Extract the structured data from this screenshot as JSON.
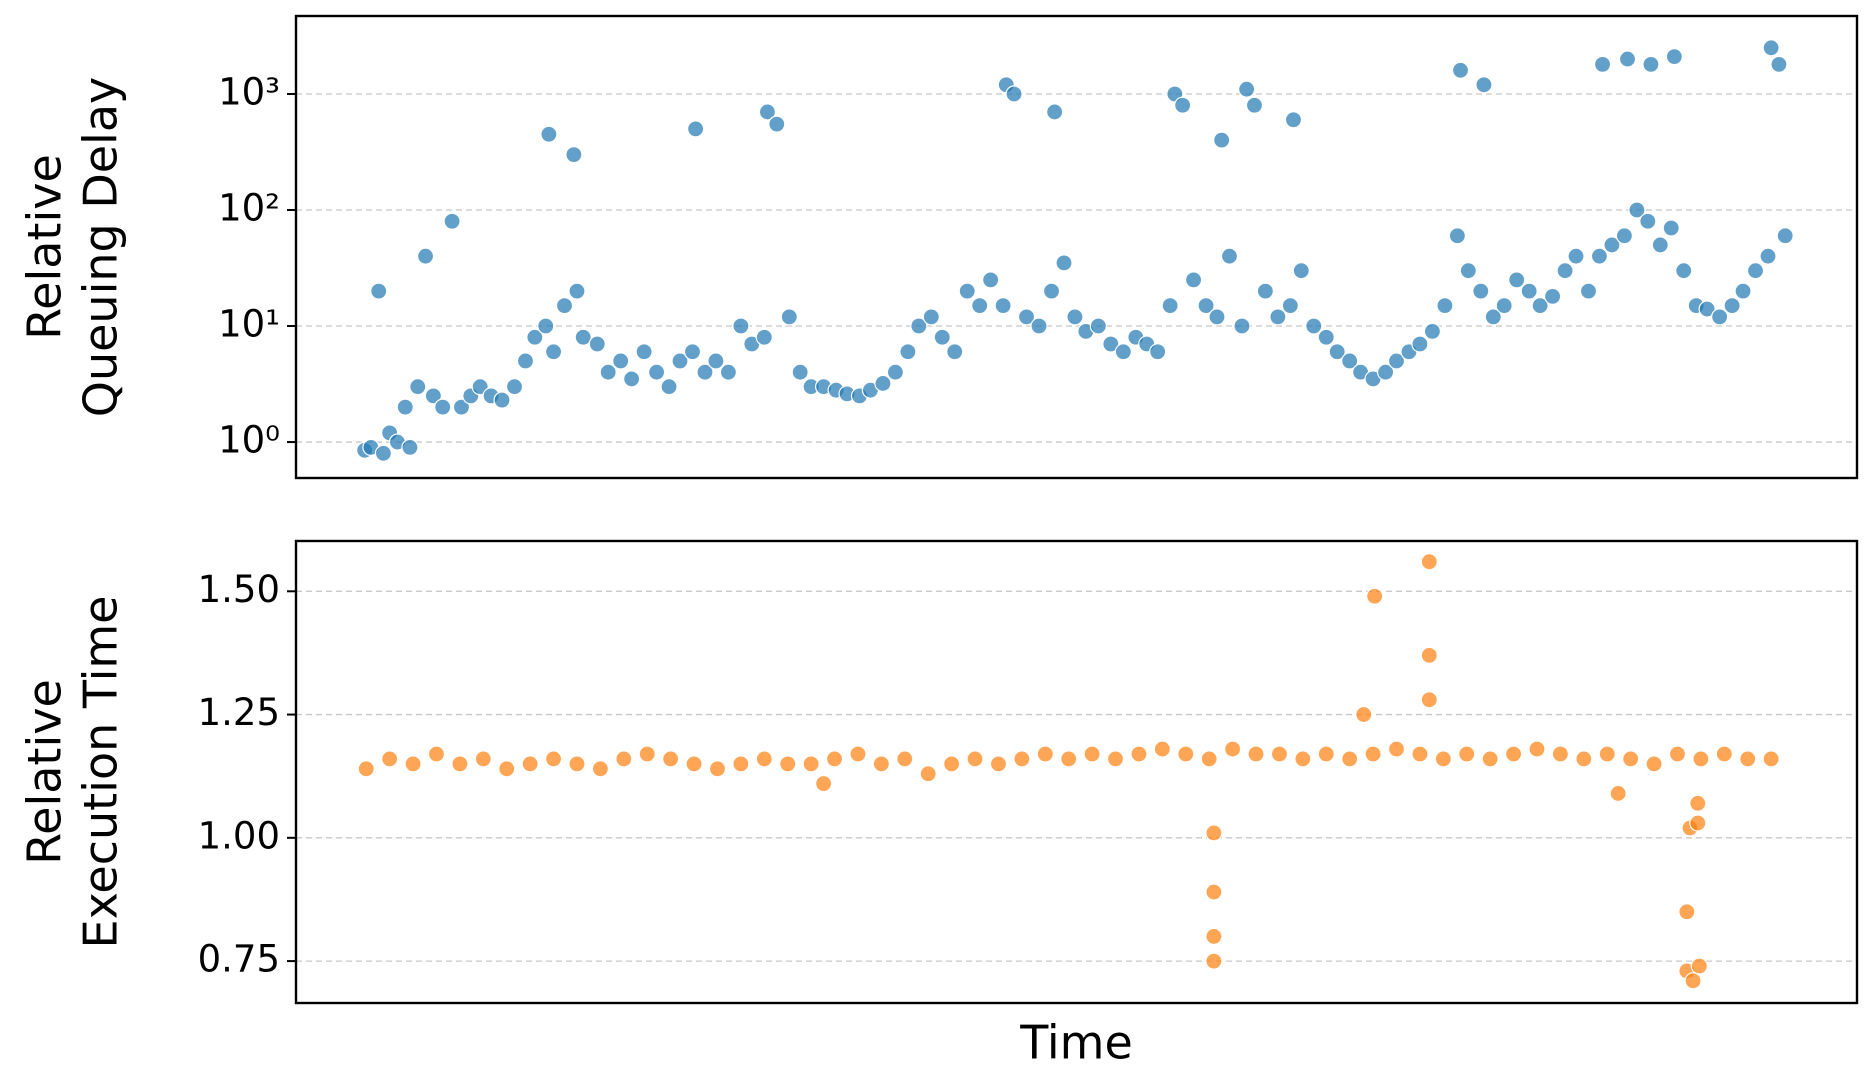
{
  "chart_data": [
    {
      "type": "scatter",
      "ylabel": [
        "Relative",
        "Queuing Delay"
      ],
      "color": "#1f77b4",
      "log_y": true,
      "grid": true,
      "xlim": [
        0,
        100
      ],
      "ylim": [
        0.49,
        4700
      ],
      "yticks": [
        {
          "value": 1,
          "label": "10⁰"
        },
        {
          "value": 10,
          "label": "10¹"
        },
        {
          "value": 100,
          "label": "10²"
        },
        {
          "value": 1000,
          "label": "10³"
        }
      ],
      "x": [
        4.4,
        4.8,
        5.3,
        5.6,
        6.0,
        6.5,
        7.0,
        7.3,
        7.8,
        8.3,
        8.8,
        9.4,
        10.0,
        10.6,
        11.2,
        11.8,
        12.5,
        13.2,
        14.0,
        14.7,
        15.3,
        16.0,
        16.2,
        16.5,
        17.2,
        17.8,
        18.0,
        18.4,
        19.3,
        20.0,
        20.8,
        21.5,
        22.3,
        23.1,
        23.9,
        24.6,
        25.4,
        25.6,
        26.2,
        26.9,
        27.7,
        28.5,
        29.2,
        30.0,
        30.2,
        30.8,
        31.6,
        32.3,
        33.0,
        33.8,
        34.6,
        35.3,
        36.1,
        36.8,
        37.6,
        38.4,
        39.2,
        39.9,
        40.7,
        41.4,
        42.2,
        43.0,
        43.8,
        44.5,
        45.3,
        45.5,
        46.0,
        46.8,
        47.6,
        48.4,
        48.6,
        49.2,
        49.9,
        50.6,
        51.4,
        52.2,
        53.0,
        53.8,
        54.5,
        55.2,
        56.0,
        56.3,
        56.8,
        57.5,
        58.3,
        59.0,
        59.3,
        59.8,
        60.6,
        60.9,
        61.4,
        62.1,
        62.9,
        63.7,
        63.9,
        64.4,
        65.2,
        66.0,
        66.7,
        67.5,
        68.2,
        69.0,
        69.8,
        70.5,
        71.3,
        72.0,
        72.8,
        73.6,
        74.4,
        74.6,
        75.1,
        75.9,
        76.1,
        76.7,
        77.4,
        78.2,
        79.0,
        79.7,
        80.5,
        81.3,
        82.0,
        82.8,
        83.5,
        83.7,
        84.3,
        85.1,
        85.3,
        85.9,
        86.6,
        86.8,
        87.4,
        88.1,
        88.3,
        88.9,
        89.7,
        90.4,
        91.2,
        92.0,
        92.7,
        93.5,
        94.3,
        94.5,
        95.0,
        95.4
      ],
      "values": [
        0.85,
        0.9,
        20,
        0.8,
        1.2,
        1.0,
        2,
        0.9,
        3,
        40,
        2.5,
        2,
        80,
        2,
        2.5,
        3,
        2.5,
        2.3,
        3,
        5,
        8,
        10,
        450,
        6,
        15,
        300,
        20,
        8,
        7,
        4,
        5,
        3.5,
        6,
        4,
        3,
        5,
        6,
        500,
        4,
        5,
        4,
        10,
        7,
        8,
        700,
        550,
        12,
        4,
        3,
        3,
        2.8,
        2.6,
        2.5,
        2.8,
        3.2,
        4,
        6,
        10,
        12,
        8,
        6,
        20,
        15,
        25,
        15,
        1200,
        1000,
        12,
        10,
        20,
        700,
        35,
        12,
        9,
        10,
        7,
        6,
        8,
        7,
        6,
        15,
        1000,
        800,
        25,
        15,
        12,
        400,
        40,
        10,
        1100,
        800,
        20,
        12,
        15,
        600,
        30,
        10,
        8,
        6,
        5,
        4,
        3.5,
        4,
        5,
        6,
        7,
        9,
        15,
        60,
        1600,
        30,
        20,
        1200,
        12,
        15,
        25,
        20,
        15,
        18,
        30,
        40,
        20,
        40,
        1800,
        50,
        60,
        2000,
        100,
        80,
        1800,
        50,
        70,
        2100,
        30,
        15,
        14,
        12,
        15,
        20,
        30,
        40,
        2500,
        1800,
        60
      ]
    },
    {
      "type": "scatter",
      "ylabel": [
        "Relative",
        "Execution Time"
      ],
      "xlabel": "Time",
      "color": "#ff7f0e",
      "log_y": false,
      "grid": true,
      "xlim": [
        0,
        100
      ],
      "ylim": [
        0.665,
        1.602
      ],
      "yticks": [
        0.75,
        {
          "value": 1,
          "label": "1.00"
        },
        1.25,
        {
          "value": 1.5,
          "label": "1.50"
        }
      ],
      "x": [
        4.5,
        6,
        7.5,
        9,
        10.5,
        12,
        13.5,
        15,
        16.5,
        18,
        19.5,
        21,
        22.5,
        24,
        25.5,
        27,
        28.5,
        30,
        31.5,
        33,
        34.5,
        36,
        37.5,
        39,
        40.5,
        42,
        43.5,
        45,
        46.5,
        48,
        49.5,
        51,
        52.5,
        54,
        55.5,
        57,
        58.5,
        60,
        61.5,
        63,
        64.5,
        66,
        67.5,
        69,
        70.5,
        72,
        73.5,
        75,
        76.5,
        78,
        79.5,
        81,
        82.5,
        84,
        85.5,
        87,
        88.5,
        90,
        91.5,
        93,
        94.5,
        33.8,
        58.8,
        58.8,
        58.8,
        58.8,
        68.4,
        69.1,
        72.6,
        72.6,
        72.6,
        84.7,
        89.1,
        89.1,
        89.5,
        89.3,
        89.8,
        89.8,
        89.9
      ],
      "values": [
        1.14,
        1.16,
        1.15,
        1.17,
        1.15,
        1.16,
        1.14,
        1.15,
        1.16,
        1.15,
        1.14,
        1.16,
        1.17,
        1.16,
        1.15,
        1.14,
        1.15,
        1.16,
        1.15,
        1.15,
        1.16,
        1.17,
        1.15,
        1.16,
        1.13,
        1.15,
        1.16,
        1.15,
        1.16,
        1.17,
        1.16,
        1.17,
        1.16,
        1.17,
        1.18,
        1.17,
        1.16,
        1.18,
        1.17,
        1.17,
        1.16,
        1.17,
        1.16,
        1.17,
        1.18,
        1.17,
        1.16,
        1.17,
        1.16,
        1.17,
        1.18,
        1.17,
        1.16,
        1.17,
        1.16,
        1.15,
        1.17,
        1.16,
        1.17,
        1.16,
        1.16,
        1.11,
        1.01,
        0.89,
        0.8,
        0.75,
        1.25,
        1.49,
        1.56,
        1.37,
        1.28,
        1.09,
        0.85,
        0.73,
        0.71,
        1.02,
        1.03,
        1.07,
        0.74
      ]
    }
  ]
}
